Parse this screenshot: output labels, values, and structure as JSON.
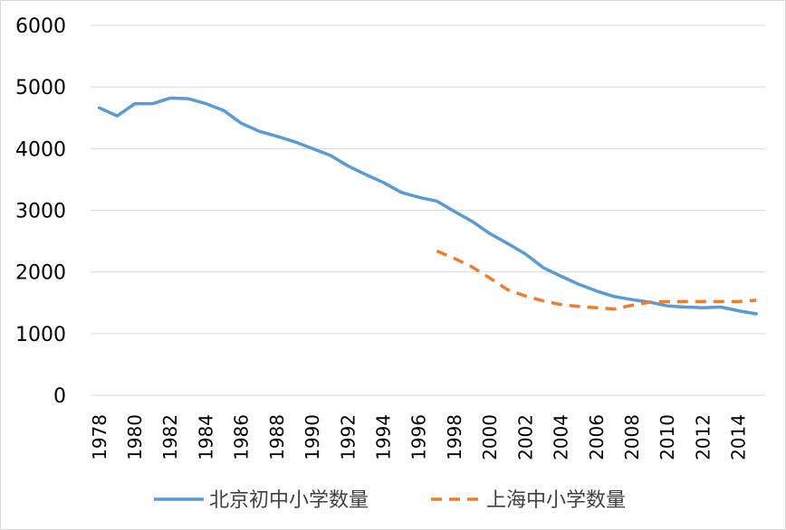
{
  "chart_data": {
    "type": "line",
    "title": "",
    "xlabel": "",
    "ylabel": "",
    "ylim": [
      0,
      6000
    ],
    "y_ticks": [
      0,
      1000,
      2000,
      3000,
      4000,
      5000,
      6000
    ],
    "x_tick_labels": [
      "1978",
      "1980",
      "1982",
      "1984",
      "1986",
      "1988",
      "1990",
      "1992",
      "1994",
      "1996",
      "1998",
      "2000",
      "2002",
      "2004",
      "2006",
      "2008",
      "2010",
      "2012",
      "2014"
    ],
    "grid": true,
    "legend_position": "bottom",
    "x": [
      1978,
      1979,
      1980,
      1981,
      1982,
      1983,
      1984,
      1985,
      1986,
      1987,
      1988,
      1989,
      1990,
      1991,
      1992,
      1993,
      1994,
      1995,
      1996,
      1997,
      1998,
      1999,
      2000,
      2001,
      2002,
      2003,
      2004,
      2005,
      2006,
      2007,
      2008,
      2009,
      2010,
      2011,
      2012,
      2013,
      2014,
      2015
    ],
    "series": [
      {
        "name": "北京初中小学数量",
        "color": "#5b9bd5",
        "style": "solid",
        "values": [
          4660,
          4530,
          4730,
          4730,
          4820,
          4810,
          4730,
          4620,
          4410,
          4280,
          4200,
          4110,
          4000,
          3890,
          3720,
          3580,
          3450,
          3290,
          3210,
          3150,
          2980,
          2820,
          2620,
          2460,
          2290,
          2070,
          1930,
          1800,
          1690,
          1600,
          1550,
          1510,
          1450,
          1430,
          1420,
          1430,
          1370,
          1320
        ]
      },
      {
        "name": "上海中小学数量",
        "color": "#ed7d31",
        "style": "dashed",
        "values": [
          null,
          null,
          null,
          null,
          null,
          null,
          null,
          null,
          null,
          null,
          null,
          null,
          null,
          null,
          null,
          null,
          null,
          null,
          null,
          2340,
          2220,
          2080,
          1900,
          1710,
          1610,
          1530,
          1470,
          1440,
          1420,
          1400,
          1460,
          1510,
          1520,
          1520,
          1520,
          1520,
          1520,
          1540
        ]
      }
    ]
  }
}
